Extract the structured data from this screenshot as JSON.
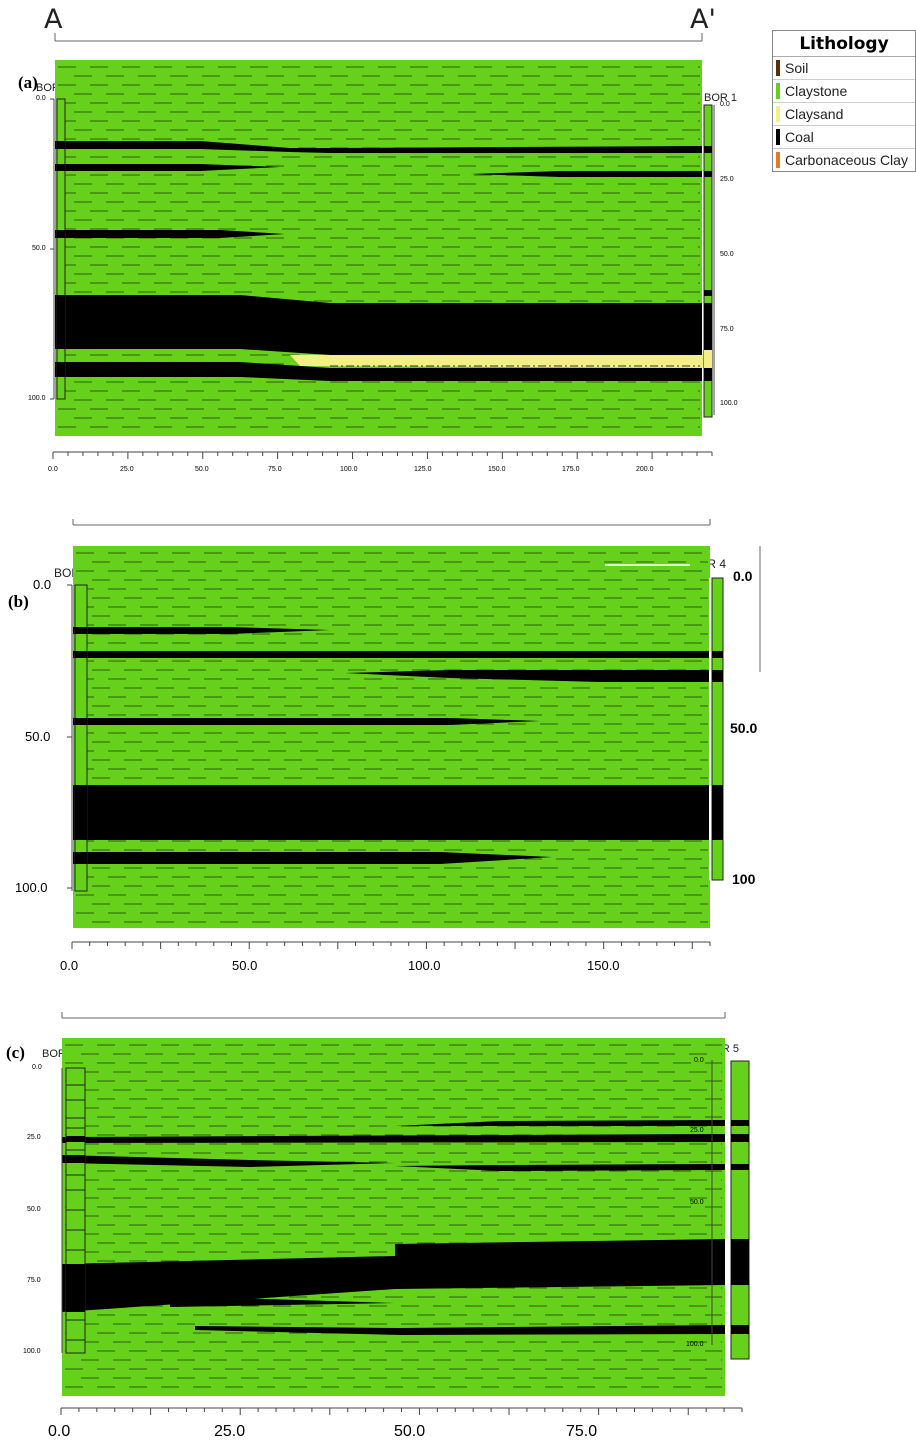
{
  "section_line": {
    "left_label": "A",
    "right_label": "A'"
  },
  "legend": {
    "title": "Lithology",
    "items": [
      {
        "label": "Soil",
        "color": "#5a2e0c"
      },
      {
        "label": "Claystone",
        "color": "#66d11a"
      },
      {
        "label": "Claysand",
        "color": "#f3f08a"
      },
      {
        "label": "Coal",
        "color": "#000000"
      },
      {
        "label": "Carbonaceous Clay",
        "color": "#e07a28"
      }
    ]
  },
  "colors": {
    "claystone": "#66d11a",
    "coal": "#000000",
    "claysand": "#f3ef86",
    "dash": "#2e5a10"
  },
  "panels": [
    {
      "label": "(a)",
      "left_borehole": "BOR 2",
      "right_borehole": "BOR 1",
      "left_depth_ticks": [
        "0.0",
        "50.0",
        "100.0"
      ],
      "right_depth_ticks": [
        "0.0",
        "25.0",
        "50.0",
        "75.0",
        "100.0"
      ],
      "x_ticks": [
        "0.0",
        "25.0",
        "50.0",
        "75.0",
        "100.0",
        "125.0",
        "150.0",
        "175.0",
        "200.0"
      ]
    },
    {
      "label": "(b)",
      "left_borehole": "BOR 2",
      "right_borehole": "BOR 4",
      "left_depth_ticks": [
        "0.0",
        "50.0",
        "100.0"
      ],
      "right_depth_ticks": [
        "0.0",
        "50.0",
        "100"
      ],
      "x_ticks": [
        "0.0",
        "50.0",
        "100.0",
        "150.0"
      ]
    },
    {
      "label": "(c)",
      "left_borehole": "BOR 4",
      "right_borehole": "BOR 5",
      "left_depth_ticks": [
        "0.0",
        "25.0",
        "50.0",
        "75.0",
        "100.0"
      ],
      "right_depth_ticks": [
        "0.0",
        "25.0",
        "50.0",
        "100.0"
      ],
      "x_ticks": [
        "0.0",
        "25.0",
        "50.0",
        "75.0"
      ]
    }
  ]
}
